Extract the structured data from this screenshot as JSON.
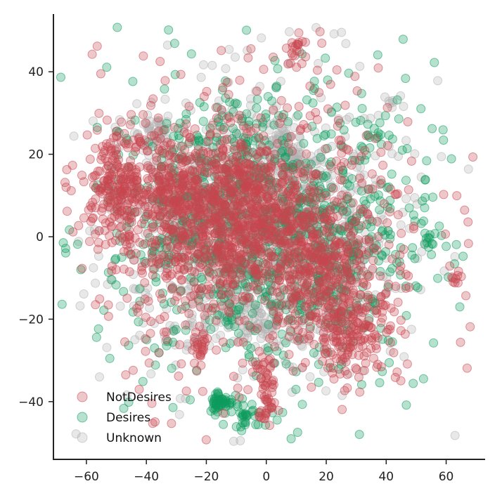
{
  "chart_data": {
    "type": "scatter",
    "title": "",
    "xlabel": "",
    "ylabel": "",
    "xlim": [
      -71,
      73
    ],
    "ylim": [
      -54,
      54
    ],
    "x_ticks": [
      -60,
      -40,
      -20,
      0,
      20,
      40,
      60
    ],
    "y_ticks": [
      -40,
      -20,
      0,
      20,
      40
    ],
    "x_tick_labels": [
      "−60",
      "−40",
      "−20",
      "0",
      "20",
      "40",
      "60"
    ],
    "y_tick_labels": [
      "−40",
      "−20",
      "0",
      "20",
      "40"
    ],
    "legend_position": "bottom-left",
    "grid": false,
    "point_alpha": 0.3,
    "series": [
      {
        "name": "NotDesires",
        "color": "#c8474f",
        "clusters": [
          {
            "center": [
              -50,
              13
            ],
            "spread": [
              6,
              6
            ],
            "count": 220
          },
          {
            "center": [
              -30,
              12
            ],
            "spread": [
              6,
              6
            ],
            "count": 180
          },
          {
            "center": [
              -10,
              13
            ],
            "spread": [
              6,
              6
            ],
            "count": 180
          },
          {
            "center": [
              -12,
              -1
            ],
            "spread": [
              8,
              6
            ],
            "count": 240
          },
          {
            "center": [
              5,
              4
            ],
            "spread": [
              8,
              7
            ],
            "count": 220
          },
          {
            "center": [
              18,
              -8
            ],
            "spread": [
              8,
              6
            ],
            "count": 200
          },
          {
            "center": [
              28,
              -22
            ],
            "spread": [
              8,
              6
            ],
            "count": 200
          },
          {
            "center": [
              -30,
              0
            ],
            "spread": [
              10,
              10
            ],
            "count": 160
          },
          {
            "center": [
              -22,
              -27
            ],
            "spread": [
              1.5,
              2
            ],
            "count": 25
          },
          {
            "center": [
              0,
              -33
            ],
            "spread": [
              1.5,
              3
            ],
            "count": 35
          },
          {
            "center": [
              0,
              -42
            ],
            "spread": [
              1.5,
              2
            ],
            "count": 25
          },
          {
            "center": [
              10,
              46
            ],
            "spread": [
              2,
              2
            ],
            "count": 20
          },
          {
            "center": [
              63,
              -10
            ],
            "spread": [
              1,
              1
            ],
            "count": 8
          }
        ],
        "background": {
          "center": [
            0,
            2
          ],
          "spread": [
            28,
            20
          ],
          "count": 650
        }
      },
      {
        "name": "Desires",
        "color": "#0e9a5e",
        "clusters": [
          {
            "center": [
              -15,
              -40
            ],
            "spread": [
              2,
              1.5
            ],
            "count": 50
          },
          {
            "center": [
              -7,
              -43
            ],
            "spread": [
              2,
              1.5
            ],
            "count": 25
          },
          {
            "center": [
              54,
              -1
            ],
            "spread": [
              1,
              1
            ],
            "count": 10
          },
          {
            "center": [
              36,
              24
            ],
            "spread": [
              1.5,
              1.5
            ],
            "count": 10
          },
          {
            "center": [
              -20,
              8
            ],
            "spread": [
              15,
              12
            ],
            "count": 200
          },
          {
            "center": [
              15,
              -5
            ],
            "spread": [
              15,
              12
            ],
            "count": 200
          }
        ],
        "background": {
          "center": [
            0,
            2
          ],
          "spread": [
            28,
            20
          ],
          "count": 700
        }
      },
      {
        "name": "Unknown",
        "color": "#b3b3b3",
        "clusters": [
          {
            "center": [
              -37,
              25
            ],
            "spread": [
              3,
              2
            ],
            "count": 40
          },
          {
            "center": [
              4,
              23
            ],
            "spread": [
              3,
              3
            ],
            "count": 40
          },
          {
            "center": [
              10,
              17
            ],
            "spread": [
              3,
              3
            ],
            "count": 40
          },
          {
            "center": [
              -5,
              -18
            ],
            "spread": [
              15,
              5
            ],
            "count": 140
          },
          {
            "center": [
              -25,
              5
            ],
            "spread": [
              12,
              12
            ],
            "count": 180
          },
          {
            "center": [
              15,
              0
            ],
            "spread": [
              14,
              12
            ],
            "count": 180
          }
        ],
        "background": {
          "center": [
            0,
            3
          ],
          "spread": [
            28,
            20
          ],
          "count": 500
        }
      }
    ]
  }
}
